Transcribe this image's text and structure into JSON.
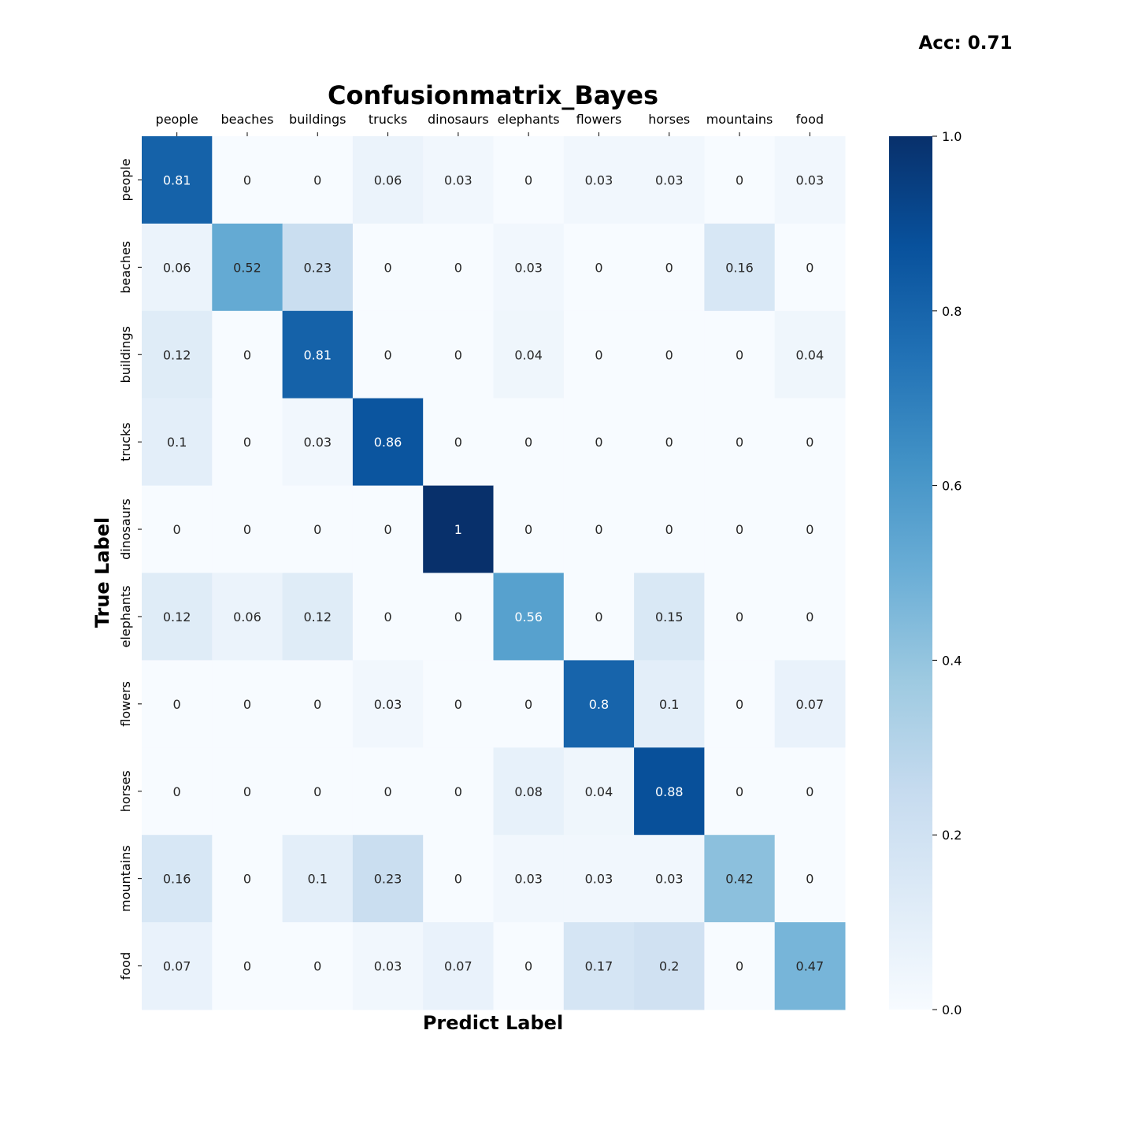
{
  "accuracy_label": "Acc: 0.71",
  "chart_data": {
    "type": "heatmap",
    "title": "Confusionmatrix_Bayes",
    "xlabel": "Predict Label",
    "ylabel": "True Label",
    "x_categories": [
      "people",
      "beaches",
      "buildings",
      "trucks",
      "dinosaurs",
      "elephants",
      "flowers",
      "horses",
      "mountains",
      "food"
    ],
    "y_categories": [
      "people",
      "beaches",
      "buildings",
      "trucks",
      "dinosaurs",
      "elephants",
      "flowers",
      "horses",
      "mountains",
      "food"
    ],
    "values": [
      [
        0.81,
        0,
        0,
        0.06,
        0.03,
        0,
        0.03,
        0.03,
        0,
        0.03
      ],
      [
        0.06,
        0.52,
        0.23,
        0,
        0,
        0.03,
        0,
        0,
        0.16,
        0
      ],
      [
        0.12,
        0,
        0.81,
        0,
        0,
        0.04,
        0,
        0,
        0,
        0.04
      ],
      [
        0.1,
        0,
        0.03,
        0.86,
        0,
        0,
        0,
        0,
        0,
        0
      ],
      [
        0,
        0,
        0,
        0,
        1,
        0,
        0,
        0,
        0,
        0
      ],
      [
        0.12,
        0.06,
        0.12,
        0,
        0,
        0.56,
        0,
        0.15,
        0,
        0
      ],
      [
        0,
        0,
        0,
        0.03,
        0,
        0,
        0.8,
        0.1,
        0,
        0.07
      ],
      [
        0,
        0,
        0,
        0,
        0,
        0.08,
        0.04,
        0.88,
        0,
        0
      ],
      [
        0.16,
        0,
        0.1,
        0.23,
        0,
        0.03,
        0.03,
        0.03,
        0.42,
        0
      ],
      [
        0.07,
        0,
        0,
        0.03,
        0.07,
        0,
        0.17,
        0.2,
        0,
        0.47
      ]
    ],
    "colormap": "Blues",
    "colorbar": {
      "range": [
        0,
        1
      ],
      "ticks": [
        0.0,
        0.2,
        0.4,
        0.6,
        0.8,
        1.0
      ],
      "tick_labels": [
        "0.0",
        "0.2",
        "0.4",
        "0.6",
        "0.8",
        "1.0"
      ]
    },
    "x_tick_position": "top"
  }
}
